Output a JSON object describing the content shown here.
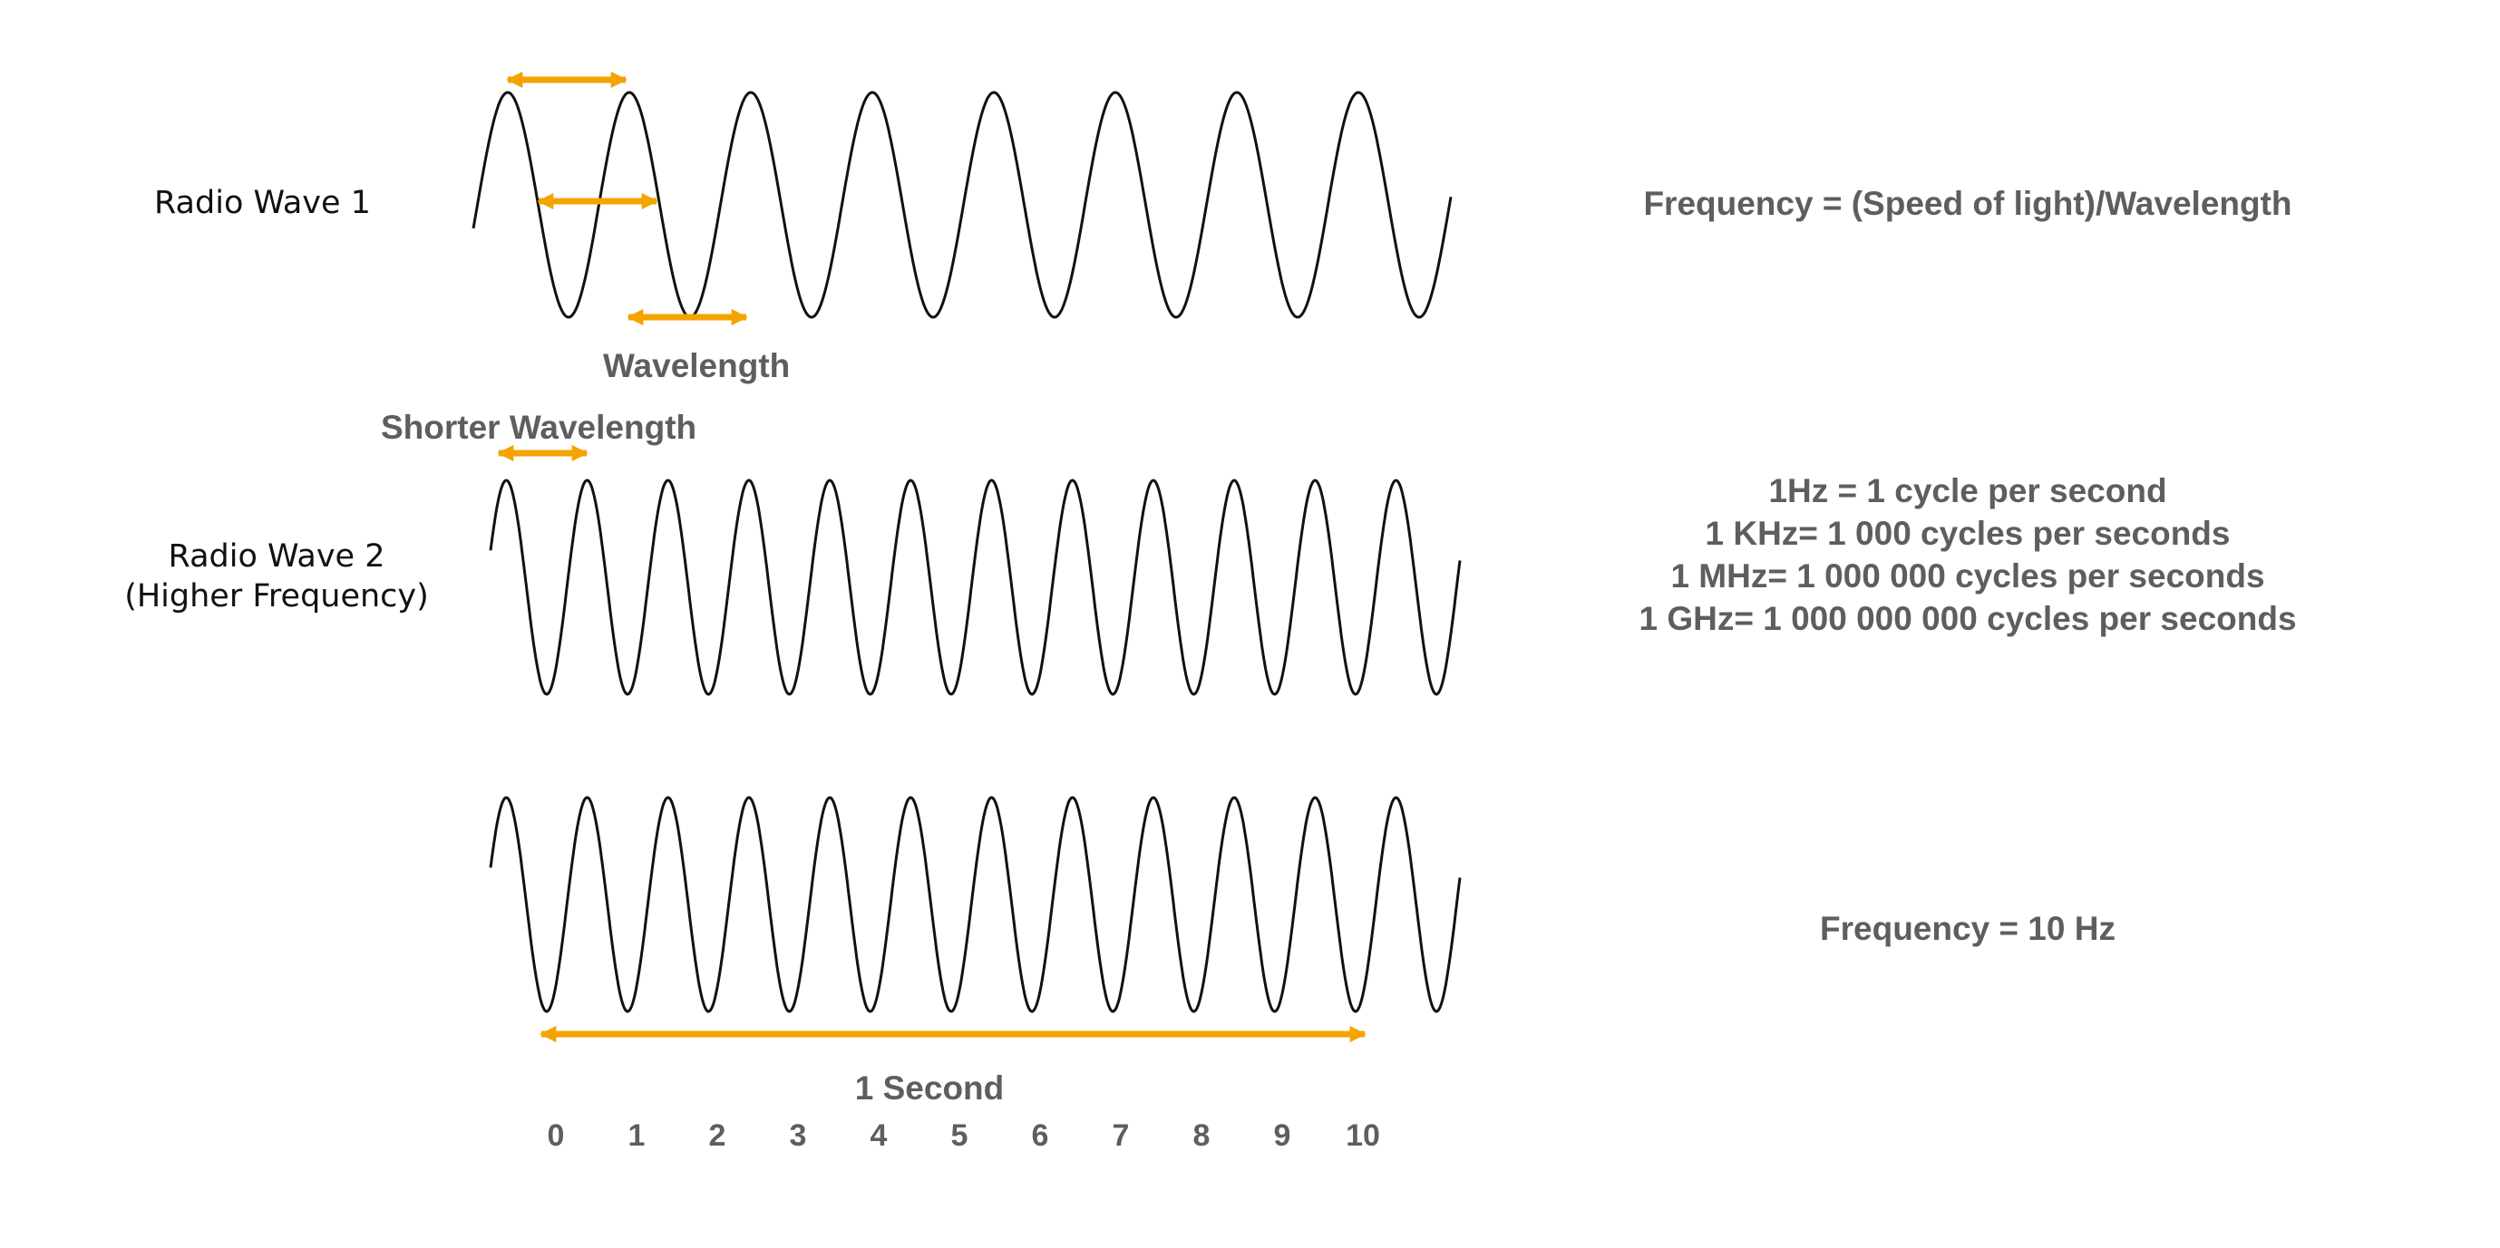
{
  "labels": {
    "wave1": "Radio Wave 1",
    "wave2_line1": "Radio Wave 2",
    "wave2_line2": "(Higher Frequency)",
    "wavelength": "Wavelength",
    "shorter_wavelength": "Shorter Wavelength",
    "one_second": "1 Second"
  },
  "formulas": {
    "frequency_formula": "Frequency = (Speed of light)/Wavelength",
    "frequency_value": "Frequency = 10 Hz"
  },
  "units": [
    "1Hz = 1 cycle per second",
    "1 KHz= 1 000 cycles per seconds",
    "1 MHz= 1 000 000 cycles per seconds",
    "1 GHz= 1 000 000 000 cycles per seconds"
  ],
  "time_axis": {
    "ticks": [
      "0",
      "1",
      "2",
      "3",
      "4",
      "5",
      "6",
      "7",
      "8",
      "9",
      "10"
    ],
    "seconds": 1
  },
  "waves": {
    "wave1": {
      "cycles_shown": 8
    },
    "wave2": {
      "cycles_shown": 12
    },
    "wave3": {
      "cycles_shown": 12
    }
  },
  "colors": {
    "wave_stroke": "#111111",
    "arrow": "#f5a300",
    "label_text": "#111111",
    "annotation_text": "#5e5e5e"
  }
}
